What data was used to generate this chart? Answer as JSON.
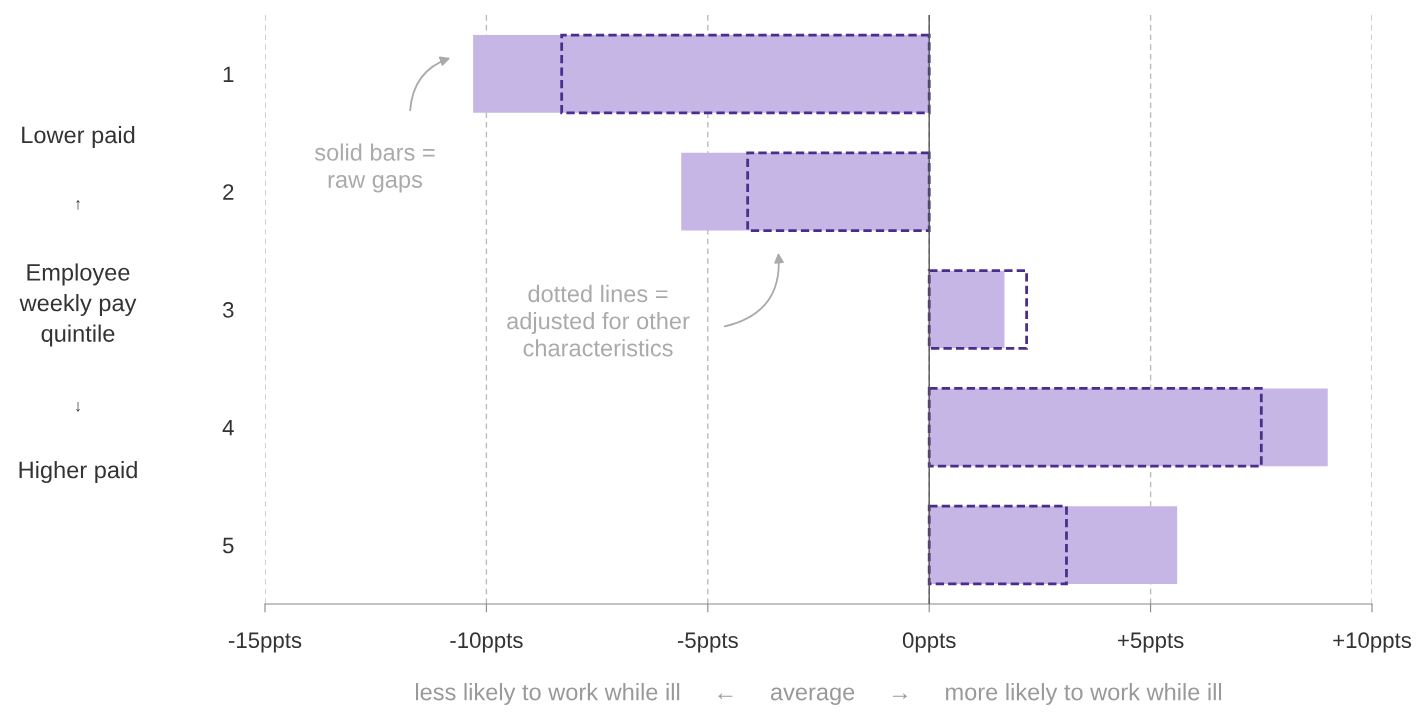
{
  "chart_data": {
    "type": "bar",
    "orientation": "horizontal",
    "categories": [
      "1",
      "2",
      "3",
      "4",
      "5"
    ],
    "series": [
      {
        "color": "#c5b6e6",
        "values": [
          -10.3,
          -5.6,
          1.7,
          9.0,
          5.6
        ]
      },
      {
        "color": "#4b2e8c",
        "line_style": "dashed",
        "values": [
          -8.3,
          -4.1,
          2.2,
          7.5,
          3.1
        ]
      }
    ],
    "xlim": [
      -15,
      10
    ],
    "xticks": [
      {
        "value": -15,
        "label": "-15ppts"
      },
      {
        "value": -10,
        "label": "-10ppts"
      },
      {
        "value": -5,
        "label": "-5ppts"
      },
      {
        "value": 0,
        "label": "0ppts"
      },
      {
        "value": 5,
        "label": "+5ppts"
      },
      {
        "value": 10,
        "label": "+10ppts"
      }
    ],
    "grid": "x",
    "ref_lines": [
      {
        "axis": "x",
        "value": 0,
        "color": "#555555",
        "line_style": "solid"
      }
    ],
    "ylabel": "Employee\nweekly pay\nquintile",
    "xlabel": "less likely to work while ill     ←     average     →     more likely to work while ill",
    "annotations": [
      "solid bars =\nraw gaps",
      "dotted lines =\nadjusted for other\ncharacteristics",
      "Lower paid",
      "↑",
      "↓",
      "Higher paid"
    ]
  }
}
